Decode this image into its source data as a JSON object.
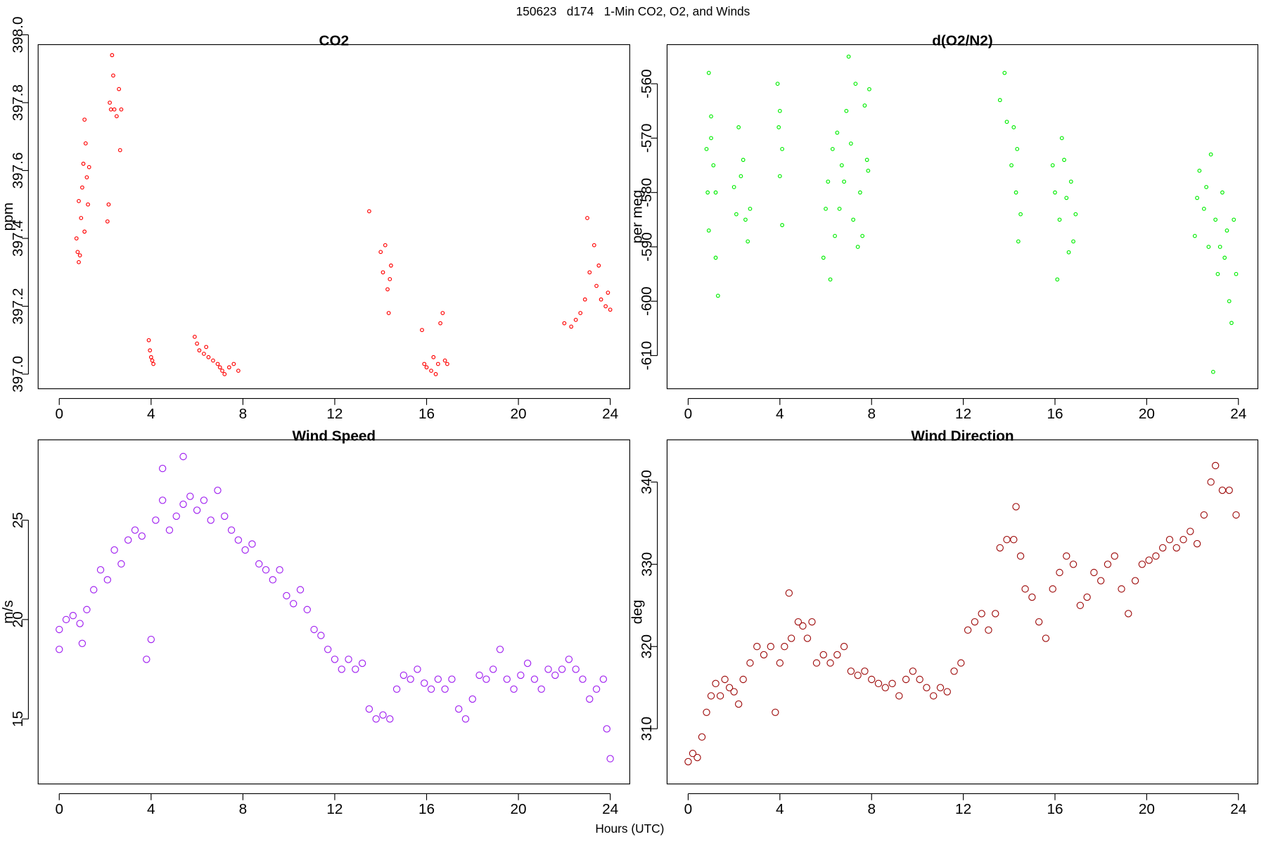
{
  "title": "150623   d174   1-Min CO2, O2, and Winds",
  "x_label": "Hours (UTC)",
  "chart_data": [
    {
      "type": "scatter",
      "title": "CO2",
      "y_label": "ppm",
      "color": "#ff0000",
      "xlim": [
        -0.92,
        24.85
      ],
      "xticks": [
        0,
        4,
        8,
        12,
        16,
        20,
        24
      ],
      "ylim": [
        396.957,
        397.971
      ],
      "yticks": [
        {
          "value": 397,
          "label": "397.0"
        },
        397.2,
        397.4,
        397.6,
        397.8,
        {
          "value": 398,
          "label": "398.0"
        }
      ],
      "x": [
        0.75,
        0.8,
        0.85,
        0.9,
        0.95,
        1.0,
        1.05,
        1.1,
        1.15,
        1.2,
        1.25,
        1.1,
        0.85,
        1.3,
        2.1,
        2.15,
        2.2,
        2.3,
        2.35,
        2.4,
        2.5,
        2.6,
        2.65,
        2.7,
        2.25,
        3.9,
        3.95,
        4.0,
        4.05,
        4.1,
        5.9,
        6.0,
        6.1,
        6.3,
        6.5,
        6.7,
        6.9,
        7.1,
        7.2,
        7.4,
        7.6,
        7.8,
        6.4,
        7.0,
        13.5,
        14.0,
        14.1,
        14.2,
        14.3,
        14.35,
        14.4,
        14.45,
        15.8,
        15.9,
        16.0,
        16.2,
        16.4,
        16.5,
        16.6,
        16.7,
        16.8,
        16.9,
        16.3,
        22.0,
        22.3,
        22.5,
        22.7,
        22.9,
        23.1,
        23.3,
        23.4,
        23.6,
        23.8,
        23.9,
        24.0,
        23.0,
        23.5
      ],
      "values": [
        397.4,
        397.36,
        397.33,
        397.35,
        397.46,
        397.55,
        397.62,
        397.75,
        397.68,
        397.58,
        397.5,
        397.42,
        397.51,
        397.61,
        397.45,
        397.5,
        397.8,
        397.94,
        397.88,
        397.78,
        397.76,
        397.84,
        397.66,
        397.78,
        397.78,
        397.1,
        397.07,
        397.05,
        397.04,
        397.03,
        397.11,
        397.09,
        397.07,
        397.06,
        397.05,
        397.04,
        397.03,
        397.01,
        397.0,
        397.02,
        397.03,
        397.01,
        397.08,
        397.02,
        397.48,
        397.36,
        397.3,
        397.38,
        397.25,
        397.18,
        397.28,
        397.32,
        397.13,
        397.03,
        397.02,
        397.01,
        397.0,
        397.03,
        397.15,
        397.18,
        397.04,
        397.03,
        397.05,
        397.15,
        397.14,
        397.16,
        397.18,
        397.22,
        397.3,
        397.38,
        397.26,
        397.22,
        397.2,
        397.24,
        397.19,
        397.46,
        397.32
      ]
    },
    {
      "type": "scatter",
      "title": "d(O2/N2)",
      "y_label": "per meg",
      "color": "#00ee00",
      "xlim": [
        -0.92,
        24.85
      ],
      "xticks": [
        0,
        4,
        8,
        12,
        16,
        20,
        24
      ],
      "ylim": [
        -616.1,
        -552.8
      ],
      "yticks": [
        -610,
        -600,
        -590,
        -580,
        -570,
        -560
      ],
      "x": [
        0.8,
        0.9,
        1.0,
        1.1,
        1.2,
        0.9,
        1.2,
        1.3,
        1.0,
        0.85,
        2.2,
        2.3,
        2.1,
        2.4,
        2.5,
        2.6,
        2.7,
        2.0,
        3.9,
        4.0,
        4.1,
        4.0,
        4.1,
        3.95,
        5.9,
        6.0,
        6.1,
        6.3,
        6.5,
        6.7,
        6.9,
        7.0,
        7.1,
        7.3,
        7.5,
        7.6,
        7.7,
        7.8,
        7.9,
        6.2,
        6.6,
        7.4,
        6.8,
        7.2,
        6.4,
        7.85,
        13.6,
        13.8,
        13.9,
        14.1,
        14.2,
        14.3,
        14.4,
        14.5,
        14.35,
        15.9,
        16.0,
        16.1,
        16.2,
        16.3,
        16.5,
        16.6,
        16.7,
        16.8,
        16.9,
        16.4,
        22.1,
        22.2,
        22.3,
        22.5,
        22.7,
        22.8,
        23.0,
        23.1,
        23.3,
        23.4,
        23.5,
        23.6,
        23.7,
        23.8,
        23.9,
        22.9,
        22.6,
        23.2
      ],
      "values": [
        -572,
        -558,
        -566,
        -575,
        -580,
        -587,
        -592,
        -599,
        -570,
        -580,
        -568,
        -577,
        -584,
        -574,
        -585,
        -589,
        -583,
        -579,
        -560,
        -565,
        -572,
        -577,
        -586,
        -568,
        -592,
        -583,
        -578,
        -572,
        -569,
        -575,
        -565,
        -555,
        -571,
        -560,
        -580,
        -588,
        -564,
        -574,
        -561,
        -596,
        -583,
        -590,
        -578,
        -585,
        -588,
        -576,
        -563,
        -558,
        -567,
        -575,
        -568,
        -580,
        -589,
        -584,
        -572,
        -575,
        -580,
        -596,
        -585,
        -570,
        -581,
        -591,
        -578,
        -589,
        -584,
        -574,
        -588,
        -581,
        -576,
        -583,
        -590,
        -573,
        -585,
        -595,
        -580,
        -592,
        -587,
        -600,
        -604,
        -585,
        -595,
        -613,
        -579,
        -590
      ]
    },
    {
      "type": "scatter",
      "title": "Wind Speed",
      "y_label": "m/s",
      "color": "#a020f0",
      "xlim": [
        -0.92,
        24.85
      ],
      "xticks": [
        0,
        4,
        8,
        12,
        16,
        20,
        24
      ],
      "ylim": [
        11.73,
        29.04
      ],
      "yticks": [
        15,
        20,
        25
      ],
      "x": [
        0,
        0.3,
        0.6,
        0.9,
        1.2,
        1.5,
        1.8,
        2.1,
        2.4,
        2.7,
        3.0,
        3.3,
        3.6,
        3.8,
        4.0,
        4.2,
        4.5,
        4.8,
        5.1,
        5.4,
        5.7,
        6.0,
        6.3,
        6.6,
        6.9,
        7.2,
        7.5,
        7.8,
        8.1,
        8.4,
        8.7,
        9.0,
        9.3,
        9.6,
        9.9,
        10.2,
        10.5,
        10.8,
        11.1,
        11.4,
        11.7,
        12.0,
        12.3,
        12.6,
        12.9,
        13.2,
        13.5,
        13.8,
        14.1,
        14.4,
        14.7,
        15.0,
        15.3,
        15.6,
        15.9,
        16.2,
        16.5,
        16.8,
        17.1,
        17.4,
        17.7,
        18.0,
        18.3,
        18.6,
        18.9,
        19.2,
        19.5,
        19.8,
        20.1,
        20.4,
        20.7,
        21.0,
        21.3,
        21.6,
        21.9,
        22.2,
        22.5,
        22.8,
        23.1,
        23.4,
        23.7,
        23.85,
        24.0,
        5.4,
        4.5,
        1.0,
        0
      ],
      "values": [
        19.5,
        20,
        20.2,
        19.8,
        20.5,
        21.5,
        22.5,
        22,
        23.5,
        22.8,
        24,
        24.5,
        24.2,
        18,
        19,
        25,
        26,
        24.5,
        25.2,
        25.8,
        26.2,
        25.5,
        26,
        25,
        26.5,
        25.2,
        24.5,
        24,
        23.5,
        23.8,
        22.8,
        22.5,
        22,
        22.5,
        21.2,
        20.8,
        21.5,
        20.5,
        19.5,
        19.2,
        18.5,
        18,
        17.5,
        18,
        17.5,
        17.8,
        15.5,
        15,
        15.2,
        15,
        16.5,
        17.2,
        17,
        17.5,
        16.8,
        16.5,
        17,
        16.5,
        17,
        15.5,
        15,
        16,
        17.2,
        17,
        17.5,
        18.5,
        17,
        16.5,
        17.2,
        17.8,
        17,
        16.5,
        17.5,
        17.2,
        17.5,
        18,
        17.5,
        17,
        16,
        16.5,
        17,
        14.5,
        13,
        28.2,
        27.6,
        18.8,
        18.5
      ]
    },
    {
      "type": "scatter",
      "title": "Wind Direction",
      "y_label": "deg",
      "color": "#a01010",
      "xlim": [
        -0.92,
        24.85
      ],
      "xticks": [
        0,
        4,
        8,
        12,
        16,
        20,
        24
      ],
      "ylim": [
        303.29,
        345.13
      ],
      "yticks": [
        310,
        320,
        330,
        340
      ],
      "x": [
        0,
        0.2,
        0.4,
        0.6,
        0.8,
        1.0,
        1.2,
        1.4,
        1.6,
        1.8,
        2.0,
        2.2,
        2.4,
        2.7,
        3.0,
        3.3,
        3.6,
        3.8,
        4.0,
        4.2,
        4.5,
        4.8,
        5.0,
        5.2,
        5.4,
        5.6,
        5.9,
        6.2,
        6.5,
        6.8,
        7.1,
        7.4,
        7.7,
        8.0,
        8.3,
        8.6,
        8.9,
        9.2,
        9.5,
        9.8,
        10.1,
        10.4,
        10.7,
        11.0,
        11.3,
        11.6,
        11.9,
        12.2,
        12.5,
        12.8,
        13.1,
        13.4,
        13.6,
        13.9,
        14.2,
        14.5,
        14.7,
        15.0,
        15.3,
        15.6,
        15.9,
        16.2,
        16.5,
        16.8,
        17.1,
        17.4,
        17.7,
        18.0,
        18.3,
        18.6,
        18.9,
        19.2,
        19.5,
        19.8,
        20.1,
        20.4,
        20.7,
        21.0,
        21.3,
        21.6,
        21.9,
        22.2,
        22.5,
        22.8,
        23.0,
        23.3,
        23.6,
        23.9,
        14.3,
        4.4
      ],
      "values": [
        306,
        307,
        306.5,
        309,
        312,
        314,
        315.5,
        314,
        316,
        315,
        314.5,
        313,
        316,
        318,
        320,
        319,
        320,
        312,
        318,
        320,
        321,
        323,
        322.5,
        321,
        323,
        318,
        319,
        318,
        319,
        320,
        317,
        316.5,
        317,
        316,
        315.5,
        315,
        315.5,
        314,
        316,
        317,
        316,
        315,
        314,
        315,
        314.5,
        317,
        318,
        322,
        323,
        324,
        322,
        324,
        332,
        333,
        333,
        331,
        327,
        326,
        323,
        321,
        327,
        329,
        331,
        330,
        325,
        326,
        329,
        328,
        330,
        331,
        327,
        324,
        328,
        330,
        330.5,
        331,
        332,
        333,
        332,
        333,
        334,
        332.5,
        336,
        340,
        342,
        339,
        339,
        336,
        337,
        326.5
      ]
    }
  ]
}
